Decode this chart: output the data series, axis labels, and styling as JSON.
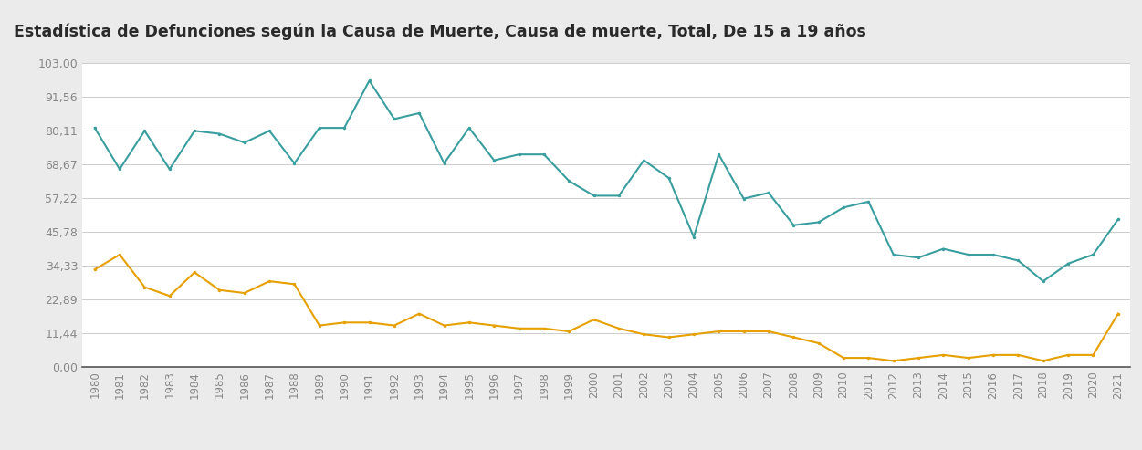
{
  "title": "Estadística de Defunciones según la Causa de Muerte, Causa de muerte, Total, De 15 a 19 años",
  "title_bg_color": "#8ecfcf",
  "title_text_color": "#2a2a2a",
  "years": [
    1980,
    1981,
    1982,
    1983,
    1984,
    1985,
    1986,
    1987,
    1988,
    1989,
    1990,
    1991,
    1992,
    1993,
    1994,
    1995,
    1996,
    1997,
    1998,
    1999,
    2000,
    2001,
    2002,
    2003,
    2004,
    2005,
    2006,
    2007,
    2008,
    2009,
    2010,
    2011,
    2012,
    2013,
    2014,
    2015,
    2016,
    2017,
    2018,
    2019,
    2020,
    2021
  ],
  "teal_line": [
    81,
    67,
    80,
    67,
    80,
    79,
    76,
    80,
    69,
    81,
    81,
    97,
    84,
    86,
    69,
    81,
    70,
    72,
    72,
    63,
    58,
    58,
    70,
    64,
    44,
    72,
    57,
    59,
    48,
    49,
    54,
    56,
    38,
    37,
    40,
    38,
    38,
    36,
    29,
    35,
    38,
    50
  ],
  "orange_line": [
    33,
    38,
    27,
    24,
    32,
    26,
    25,
    29,
    28,
    14,
    15,
    15,
    14,
    18,
    14,
    15,
    14,
    13,
    13,
    12,
    16,
    13,
    11,
    10,
    11,
    12,
    12,
    12,
    10,
    8,
    3,
    3,
    2,
    3,
    4,
    3,
    4,
    4,
    2,
    4,
    4,
    18
  ],
  "teal_color": "#3a9e9e",
  "orange_color": "#e6a000",
  "ylim": [
    0,
    103
  ],
  "yticks": [
    0.0,
    11.44,
    22.89,
    34.33,
    45.78,
    57.22,
    68.67,
    80.11,
    91.56,
    103.0
  ],
  "ytick_labels": [
    "0,00",
    "11,44",
    "22,89",
    "34,33",
    "45,78",
    "57,22",
    "68,67",
    "80,11",
    "91,56",
    "103,00"
  ],
  "bg_color": "#ebebeb",
  "plot_bg_color": "#ffffff",
  "line_width": 1.5,
  "grid_color": "#cccccc"
}
